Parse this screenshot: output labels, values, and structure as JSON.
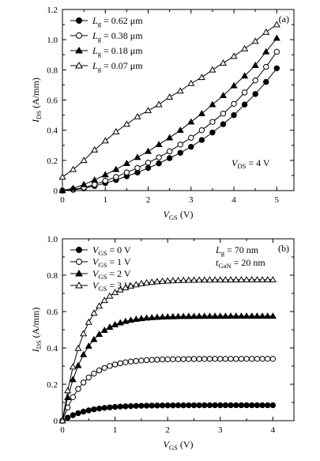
{
  "chart_data": [
    {
      "type": "scatter",
      "panel_label": "(a)",
      "xlabel": {
        "main": "V",
        "sub": "GS",
        "unit": "(V)"
      },
      "ylabel": {
        "main": "I",
        "sub": "DS",
        "unit": "(A/mm)"
      },
      "xlim": [
        0,
        5.4
      ],
      "ylim": [
        0,
        1.2
      ],
      "xticks": [
        0,
        1,
        2,
        3,
        4,
        5
      ],
      "yticks": [
        0,
        0.2,
        0.4,
        0.6,
        0.8,
        1.0,
        1.2
      ],
      "ytick_labels": [
        "0",
        "0.2",
        "0.4",
        "0.6",
        "0.8",
        "1.0",
        "1.2"
      ],
      "annotation": {
        "main": "V",
        "sub": "DS",
        "rest": " = 4 V"
      },
      "x": [
        0,
        0.25,
        0.5,
        0.75,
        1.0,
        1.25,
        1.5,
        1.75,
        2.0,
        2.25,
        2.5,
        2.75,
        3.0,
        3.25,
        3.5,
        3.75,
        4.0,
        4.25,
        4.5,
        4.75,
        5.0
      ],
      "series": [
        {
          "name": {
            "main": "L",
            "sub": "g",
            "rest": " = 0.62 μm"
          },
          "marker": "circle-filled",
          "values": [
            0.0,
            0.005,
            0.015,
            0.03,
            0.05,
            0.07,
            0.095,
            0.12,
            0.15,
            0.18,
            0.215,
            0.25,
            0.29,
            0.335,
            0.385,
            0.44,
            0.5,
            0.57,
            0.64,
            0.72,
            0.81
          ]
        },
        {
          "name": {
            "main": "L",
            "sub": "g",
            "rest": " = 0.38 μm"
          },
          "marker": "circle-open",
          "values": [
            0.0,
            0.008,
            0.02,
            0.04,
            0.065,
            0.09,
            0.12,
            0.15,
            0.185,
            0.22,
            0.26,
            0.305,
            0.35,
            0.4,
            0.455,
            0.51,
            0.575,
            0.65,
            0.73,
            0.82,
            0.92
          ]
        },
        {
          "name": {
            "main": "L",
            "sub": "g",
            "rest": " = 0.18 μm"
          },
          "marker": "triangle-filled",
          "values": [
            0.0,
            0.015,
            0.04,
            0.07,
            0.105,
            0.14,
            0.18,
            0.22,
            0.26,
            0.305,
            0.35,
            0.4,
            0.455,
            0.51,
            0.57,
            0.63,
            0.695,
            0.76,
            0.83,
            0.92,
            1.01
          ]
        },
        {
          "name": {
            "main": "L",
            "sub": "g",
            "rest": " = 0.07 μm"
          },
          "marker": "triangle-open",
          "values": [
            0.09,
            0.14,
            0.2,
            0.27,
            0.33,
            0.39,
            0.44,
            0.49,
            0.53,
            0.57,
            0.62,
            0.66,
            0.71,
            0.75,
            0.8,
            0.845,
            0.89,
            0.94,
            0.99,
            1.05,
            1.1
          ]
        }
      ]
    },
    {
      "type": "scatter",
      "panel_label": "(b)",
      "xlabel": {
        "main": "V",
        "sub": "GS",
        "unit": "(V)"
      },
      "ylabel": {
        "main": "I",
        "sub": "DS",
        "unit": "(A/mm)"
      },
      "xlim": [
        0,
        4.4
      ],
      "ylim": [
        0,
        1.0
      ],
      "xticks": [
        0,
        1,
        2,
        3,
        4
      ],
      "yticks": [
        0,
        0.2,
        0.4,
        0.6,
        0.8,
        1.0
      ],
      "ytick_labels": [
        "0",
        "0.2",
        "0.4",
        "0.6",
        "0.8",
        "1.0"
      ],
      "annotations": [
        {
          "main": "L",
          "sub": "g",
          "rest": " = 70 nm"
        },
        {
          "main": "t",
          "sub": "GaN",
          "rest": " = 20 nm"
        }
      ],
      "series": [
        {
          "name": {
            "main": "V",
            "sub": "GS",
            "rest": " = 0 V"
          },
          "marker": "circle-filled",
          "sat": 0.085,
          "k": 2.2
        },
        {
          "name": {
            "main": "V",
            "sub": "GS",
            "rest": " = 1 V"
          },
          "marker": "circle-open",
          "sat": 0.34,
          "k": 2.4
        },
        {
          "name": {
            "main": "V",
            "sub": "GS",
            "rest": " = 2 V"
          },
          "marker": "triangle-filled",
          "sat": 0.575,
          "k": 2.5
        },
        {
          "name": {
            "main": "V",
            "sub": "GS",
            "rest": " = 3 V"
          },
          "marker": "triangle-open",
          "sat": 0.775,
          "k": 2.4
        }
      ],
      "x_start": 0,
      "x_end": 4.0,
      "x_step": 0.1
    }
  ]
}
